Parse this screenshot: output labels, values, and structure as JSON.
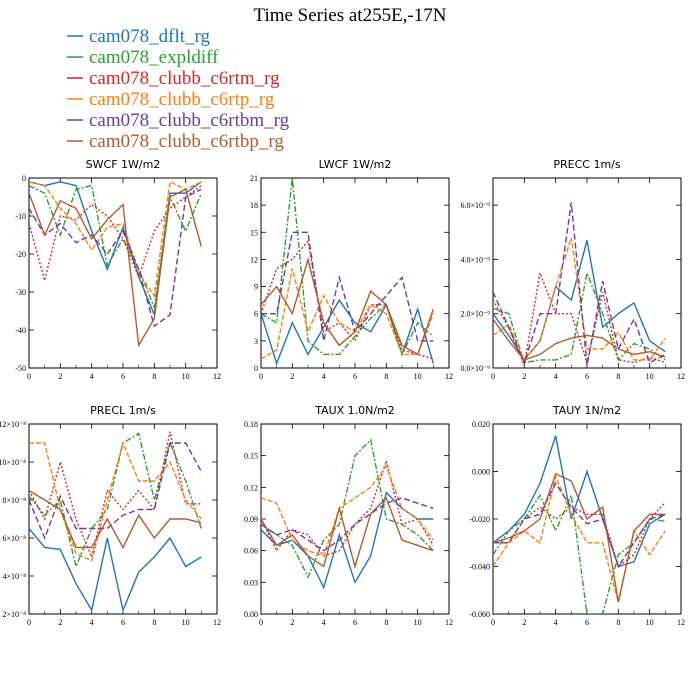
{
  "title": "Time Series at255E,-17N",
  "series_styles": [
    {
      "name": "cam078_dflt_rg",
      "color": "#1f77b4",
      "dash": ""
    },
    {
      "name": "cam078_expldiff",
      "color": "#2ca02c",
      "dash": "6,2,2,2"
    },
    {
      "name": "cam078_clubb_c6rtm_rg",
      "color": "#d62728",
      "dash": "2,2"
    },
    {
      "name": "cam078_clubb_c6rtp_rg",
      "color": "#ff7f0e",
      "dash": "5,2"
    },
    {
      "name": "cam078_clubb_c6rtbm_rg",
      "color": "#6a3d9a",
      "dash": "6,3"
    },
    {
      "name": "cam078_clubb_c6rtbp_rg",
      "color": "#b35a2e",
      "dash": ""
    }
  ],
  "chart_data": [
    {
      "type": "line",
      "title": "SWCF   1W/m2",
      "x": [
        0,
        1,
        2,
        3,
        4,
        5,
        6,
        7,
        8,
        9,
        10,
        11
      ],
      "xlim": [
        0,
        12
      ],
      "xticks": [
        0,
        2,
        4,
        6,
        8,
        10,
        12
      ],
      "ylim": [
        -50,
        0
      ],
      "yticks": [
        {
          "v": 0,
          "t": "0"
        },
        {
          "v": -10,
          "t": "-10"
        },
        {
          "v": -20,
          "t": "-20"
        },
        {
          "v": -30,
          "t": "-30"
        },
        {
          "v": -40,
          "t": "-40"
        },
        {
          "v": -50,
          "t": "-50"
        }
      ],
      "series": [
        [
          -1,
          -2,
          -1,
          -2,
          -14,
          -24,
          -13,
          -26,
          -36,
          -4,
          -4,
          -1
        ],
        [
          -2,
          -4,
          -15,
          -3,
          -2,
          -23,
          -16,
          -24,
          -34,
          -5,
          -14,
          -4
        ],
        [
          -12,
          -27,
          -10,
          -11,
          -7,
          -10,
          -16,
          -26,
          -14,
          -8,
          -5,
          -2
        ],
        [
          -1,
          -2,
          -8,
          -12,
          -19,
          -13,
          -12,
          -25,
          -31,
          -1,
          -3,
          -1
        ],
        [
          -8,
          -15,
          -12,
          -17,
          -15,
          -20,
          -14,
          -24,
          -39,
          -36,
          -5,
          -3
        ],
        [
          -4,
          -15,
          -6,
          -8,
          -16,
          -11,
          -7,
          -44,
          -37,
          -5,
          -3,
          -18
        ]
      ]
    },
    {
      "type": "line",
      "title": "LWCF   1W/m2",
      "x": [
        0,
        1,
        2,
        3,
        4,
        5,
        6,
        7,
        8,
        9,
        10,
        11
      ],
      "xlim": [
        0,
        12
      ],
      "xticks": [
        0,
        2,
        4,
        6,
        8,
        10,
        12
      ],
      "ylim": [
        0,
        21
      ],
      "yticks": [
        {
          "v": 0,
          "t": "0"
        },
        {
          "v": 3,
          "t": "3"
        },
        {
          "v": 6,
          "t": "6"
        },
        {
          "v": 9,
          "t": "9"
        },
        {
          "v": 12,
          "t": "12"
        },
        {
          "v": 15,
          "t": "15"
        },
        {
          "v": 18,
          "t": "18"
        },
        {
          "v": 21,
          "t": "21"
        }
      ],
      "series": [
        [
          6,
          0.5,
          5,
          1.5,
          4.5,
          7.5,
          5,
          4,
          7,
          1.5,
          6.5,
          0.5
        ],
        [
          6,
          5,
          21,
          3,
          1.5,
          1.5,
          3.5,
          5.5,
          7,
          1.5,
          5,
          3.5
        ],
        [
          6,
          11,
          12,
          14,
          4,
          5,
          3,
          7,
          7,
          2,
          1.5,
          1
        ],
        [
          1,
          2,
          11,
          4,
          8,
          5,
          4,
          7,
          6,
          1.5,
          1.5,
          6
        ],
        [
          6,
          6,
          15,
          15,
          3,
          10,
          4,
          6,
          8,
          10,
          3,
          3
        ],
        [
          7,
          9,
          6,
          12,
          5,
          2.5,
          4,
          8.5,
          7,
          2.5,
          1.5,
          6.5
        ]
      ]
    },
    {
      "type": "line",
      "title": "PRECC   1m/s",
      "x": [
        0,
        1,
        2,
        3,
        4,
        5,
        6,
        7,
        8,
        9,
        10,
        11
      ],
      "xlim": [
        0,
        12
      ],
      "xticks": [
        0,
        2,
        4,
        6,
        8,
        10,
        12
      ],
      "ylim": [
        0,
        7e-09
      ],
      "yticks": [
        {
          "v": 0,
          "t": "0.0×10⁻⁹"
        },
        {
          "v": 2e-09,
          "t": "2.0×10⁻⁹"
        },
        {
          "v": 4e-09,
          "t": "4.0×10⁻⁹"
        },
        {
          "v": 6e-09,
          "t": "6.0×10⁻⁹"
        }
      ],
      "series": [
        [
          2e-09,
          1.2e-09,
          3e-10,
          1e-09,
          3e-09,
          2.5e-09,
          4.7e-09,
          1.5e-09,
          2e-09,
          2.4e-09,
          1e-09,
          6e-10
        ],
        [
          2.2e-09,
          2e-09,
          2e-10,
          3e-10,
          3e-10,
          5e-10,
          3.5e-09,
          2e-09,
          3e-10,
          9e-10,
          7e-10,
          3e-10
        ],
        [
          2.5e-09,
          1.5e-09,
          1e-10,
          3.5e-09,
          2e-09,
          2e-09,
          2e-10,
          2.8e-09,
          3e-10,
          2e-10,
          4e-10,
          2e-10
        ],
        [
          1.2e-09,
          1.6e-09,
          3e-10,
          1e-09,
          3e-09,
          4.8e-09,
          7e-10,
          7e-10,
          1.3e-09,
          3e-10,
          3e-10,
          1.1e-09
        ],
        [
          2.8e-09,
          1.5e-09,
          2e-10,
          2e-09,
          2e-09,
          6.1e-09,
          1e-10,
          3.2e-09,
          7e-10,
          1.8e-09,
          2e-10,
          5e-10
        ],
        [
          1.8e-09,
          1e-09,
          3e-10,
          5e-10,
          9e-10,
          1.1e-09,
          1.2e-09,
          1.1e-09,
          7e-10,
          5e-10,
          6e-10,
          4e-10
        ]
      ]
    },
    {
      "type": "line",
      "title": "PRECL   1m/s",
      "x": [
        0,
        1,
        2,
        3,
        4,
        5,
        6,
        7,
        8,
        9,
        10,
        11
      ],
      "xlim": [
        0,
        12
      ],
      "xticks": [
        0,
        2,
        4,
        6,
        8,
        10,
        12
      ],
      "ylim": [
        2e-08,
        1.2e-07
      ],
      "yticks": [
        {
          "v": 2e-08,
          "t": "2×10⁻⁸"
        },
        {
          "v": 4e-08,
          "t": "4×10⁻⁸"
        },
        {
          "v": 6e-08,
          "t": "6×10⁻⁸"
        },
        {
          "v": 8e-08,
          "t": "8×10⁻⁸"
        },
        {
          "v": 1e-07,
          "t": "10×10⁻⁸"
        },
        {
          "v": 1.2e-07,
          "t": "12×10⁻⁸"
        }
      ],
      "series": [
        [
          6.5e-08,
          5.5e-08,
          5.4e-08,
          3.6e-08,
          2.2e-08,
          6e-08,
          2.2e-08,
          4.2e-08,
          5e-08,
          6e-08,
          4.5e-08,
          5e-08
        ],
        [
          8.2e-08,
          7.2e-08,
          8e-08,
          4.5e-08,
          6.5e-08,
          7.5e-08,
          1.1e-07,
          1.15e-07,
          8e-08,
          1.1e-07,
          9e-08,
          6.5e-08
        ],
        [
          8.5e-08,
          7e-08,
          1e-07,
          7e-08,
          5e-08,
          8.5e-08,
          7.5e-08,
          8.5e-08,
          7.5e-08,
          1.16e-07,
          7.8e-08,
          7.8e-08
        ],
        [
          1.1e-07,
          1.1e-07,
          7.5e-08,
          5.2e-08,
          4.8e-08,
          8e-08,
          1.1e-07,
          9e-08,
          9e-08,
          1e-07,
          8e-08,
          7e-08
        ],
        [
          8e-08,
          6e-08,
          8.2e-08,
          6.5e-08,
          6.5e-08,
          6.5e-08,
          7.2e-08,
          7.5e-08,
          7.5e-08,
          1.1e-07,
          1.1e-07,
          9.5e-08
        ],
        [
          8.5e-08,
          8e-08,
          7.5e-08,
          5.5e-08,
          5.5e-08,
          7e-08,
          5.5e-08,
          7.2e-08,
          6e-08,
          7e-08,
          7e-08,
          6.8e-08
        ]
      ]
    },
    {
      "type": "line",
      "title": "TAUX   1.0N/m2",
      "x": [
        0,
        1,
        2,
        3,
        4,
        5,
        6,
        7,
        8,
        9,
        10,
        11
      ],
      "xlim": [
        0,
        12
      ],
      "xticks": [
        0,
        2,
        4,
        6,
        8,
        10,
        12
      ],
      "ylim": [
        0,
        0.18
      ],
      "yticks": [
        {
          "v": 0,
          "t": "0.00"
        },
        {
          "v": 0.03,
          "t": "0.03"
        },
        {
          "v": 0.06,
          "t": "0.06"
        },
        {
          "v": 0.09,
          "t": "0.09"
        },
        {
          "v": 0.12,
          "t": "0.12"
        },
        {
          "v": 0.15,
          "t": "0.15"
        },
        {
          "v": 0.18,
          "t": "0.18"
        }
      ],
      "series": [
        [
          0.08,
          0.065,
          0.07,
          0.055,
          0.025,
          0.075,
          0.03,
          0.055,
          0.115,
          0.1,
          0.09,
          0.09
        ],
        [
          0.085,
          0.075,
          0.065,
          0.035,
          0.07,
          0.085,
          0.15,
          0.165,
          0.09,
          0.085,
          0.075,
          0.06
        ],
        [
          0.09,
          0.06,
          0.08,
          0.075,
          0.055,
          0.06,
          0.085,
          0.1,
          0.145,
          0.085,
          0.09,
          0.065
        ],
        [
          0.11,
          0.105,
          0.07,
          0.06,
          0.055,
          0.1,
          0.11,
          0.12,
          0.14,
          0.1,
          0.09,
          0.07
        ],
        [
          0.085,
          0.075,
          0.08,
          0.07,
          0.06,
          0.07,
          0.085,
          0.095,
          0.105,
          0.11,
          0.105,
          0.1
        ],
        [
          0.09,
          0.065,
          0.075,
          0.055,
          0.045,
          0.1,
          0.045,
          0.095,
          0.11,
          0.07,
          0.065,
          0.06
        ]
      ]
    },
    {
      "type": "line",
      "title": "TAUY   1N/m2",
      "x": [
        0,
        1,
        2,
        3,
        4,
        5,
        6,
        7,
        8,
        9,
        10,
        11
      ],
      "xlim": [
        0,
        12
      ],
      "xticks": [
        0,
        2,
        4,
        6,
        8,
        10,
        12
      ],
      "ylim": [
        -0.06,
        0.02
      ],
      "yticks": [
        {
          "v": 0.02,
          "t": "0.020"
        },
        {
          "v": 0,
          "t": "0.000"
        },
        {
          "v": -0.02,
          "t": "-0.020"
        },
        {
          "v": -0.04,
          "t": "-0.040"
        },
        {
          "v": -0.06,
          "t": "-0.060"
        }
      ],
      "series": [
        [
          -0.03,
          -0.025,
          -0.018,
          -0.005,
          0.015,
          -0.02,
          0.0,
          -0.02,
          -0.04,
          -0.038,
          -0.022,
          -0.018
        ],
        [
          -0.035,
          -0.025,
          -0.02,
          -0.01,
          -0.025,
          -0.01,
          -0.06,
          -0.06,
          -0.035,
          -0.03,
          -0.02,
          -0.021
        ],
        [
          -0.03,
          -0.03,
          -0.02,
          -0.015,
          -0.02,
          -0.015,
          -0.018,
          -0.018,
          -0.04,
          -0.035,
          -0.02,
          -0.013
        ],
        [
          -0.04,
          -0.03,
          -0.025,
          -0.03,
          -0.002,
          -0.018,
          -0.03,
          -0.03,
          -0.055,
          -0.025,
          -0.035,
          -0.025
        ],
        [
          -0.03,
          -0.03,
          -0.02,
          -0.018,
          -0.005,
          -0.015,
          -0.022,
          -0.02,
          -0.04,
          -0.03,
          -0.02,
          -0.018
        ],
        [
          -0.03,
          -0.028,
          -0.025,
          -0.02,
          -0.001,
          -0.004,
          -0.02,
          -0.015,
          -0.055,
          -0.025,
          -0.018,
          -0.018
        ]
      ]
    }
  ]
}
